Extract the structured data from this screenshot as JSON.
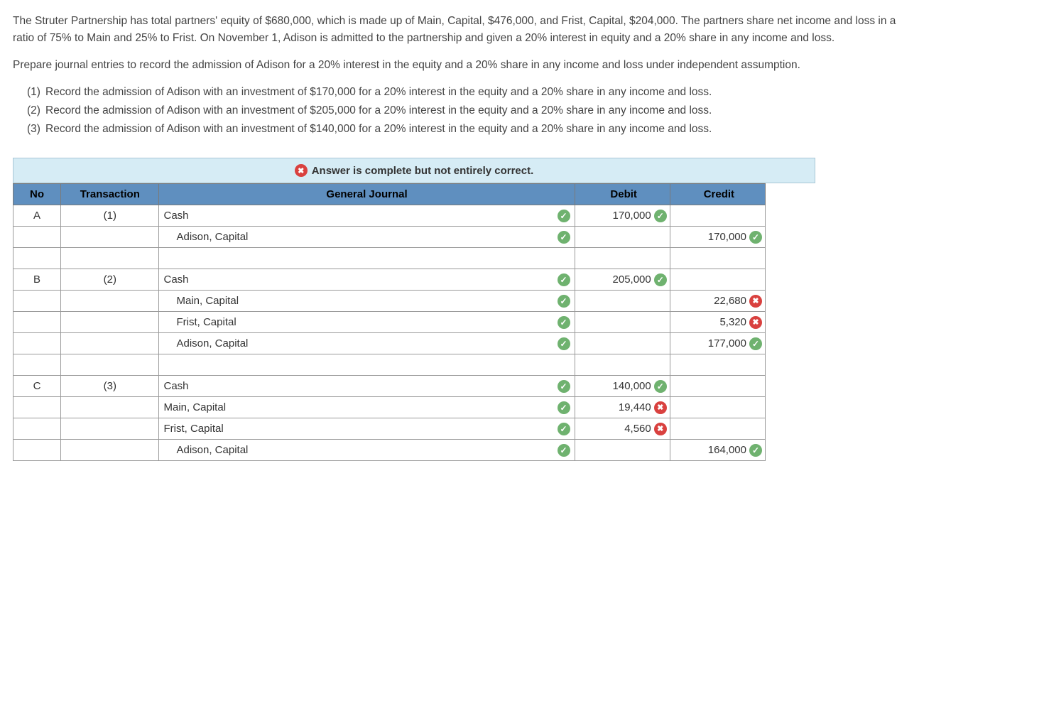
{
  "problem": {
    "para1": "The Struter Partnership has total partners' equity of $680,000, which is made up of Main, Capital, $476,000, and Frist, Capital, $204,000. The partners share net income and loss in a ratio of 75% to Main and 25% to Frist. On November 1, Adison is admitted to the partnership and given a 20% interest in equity and a 20% share in any income and loss.",
    "para2": "Prepare journal entries to record the admission of Adison for a 20% interest in the equity and a 20% share in any income and loss under independent assumption.",
    "items": [
      {
        "num": "(1)",
        "text": "Record the admission of Adison with an investment of $170,000 for a 20% interest in the equity and a 20% share in any income and loss."
      },
      {
        "num": "(2)",
        "text": "Record the admission of Adison with an investment of $205,000 for a 20% interest in the equity and a 20% share in any income and loss."
      },
      {
        "num": "(3)",
        "text": "Record the admission of Adison with an investment of $140,000 for a 20% interest in the equity and a 20% share in any income and loss."
      }
    ]
  },
  "status_message": "Answer is complete but not entirely correct.",
  "table": {
    "headers": {
      "no": "No",
      "transaction": "Transaction",
      "general_journal": "General Journal",
      "debit": "Debit",
      "credit": "Credit"
    },
    "colors": {
      "header_bg": "#5f8fbf",
      "status_bg": "#d6ecf5",
      "correct": "#6fb26f",
      "incorrect": "#d9413f",
      "border": "#9a9a9a"
    },
    "rows": [
      {
        "no": "A",
        "trans": "(1)",
        "account": "Cash",
        "indent": 0,
        "acct_mark": "correct",
        "debit": "170,000",
        "debit_mark": "correct",
        "credit": "",
        "credit_mark": ""
      },
      {
        "no": "",
        "trans": "",
        "account": "Adison, Capital",
        "indent": 1,
        "acct_mark": "correct",
        "debit": "",
        "debit_mark": "",
        "credit": "170,000",
        "credit_mark": "correct"
      },
      {
        "spacer": true
      },
      {
        "no": "B",
        "trans": "(2)",
        "account": "Cash",
        "indent": 0,
        "acct_mark": "correct",
        "debit": "205,000",
        "debit_mark": "correct",
        "credit": "",
        "credit_mark": ""
      },
      {
        "no": "",
        "trans": "",
        "account": "Main, Capital",
        "indent": 1,
        "acct_mark": "correct",
        "debit": "",
        "debit_mark": "",
        "credit": "22,680",
        "credit_mark": "incorrect"
      },
      {
        "no": "",
        "trans": "",
        "account": "Frist, Capital",
        "indent": 1,
        "acct_mark": "correct",
        "debit": "",
        "debit_mark": "",
        "credit": "5,320",
        "credit_mark": "incorrect"
      },
      {
        "no": "",
        "trans": "",
        "account": "Adison, Capital",
        "indent": 1,
        "acct_mark": "correct",
        "debit": "",
        "debit_mark": "",
        "credit": "177,000",
        "credit_mark": "correct"
      },
      {
        "spacer": true
      },
      {
        "no": "C",
        "trans": "(3)",
        "account": "Cash",
        "indent": 0,
        "acct_mark": "correct",
        "debit": "140,000",
        "debit_mark": "correct",
        "credit": "",
        "credit_mark": ""
      },
      {
        "no": "",
        "trans": "",
        "account": "Main, Capital",
        "indent": 0,
        "acct_mark": "correct",
        "debit": "19,440",
        "debit_mark": "incorrect",
        "credit": "",
        "credit_mark": ""
      },
      {
        "no": "",
        "trans": "",
        "account": "Frist, Capital",
        "indent": 0,
        "acct_mark": "correct",
        "debit": "4,560",
        "debit_mark": "incorrect",
        "credit": "",
        "credit_mark": ""
      },
      {
        "no": "",
        "trans": "",
        "account": "Adison, Capital",
        "indent": 1,
        "acct_mark": "correct",
        "debit": "",
        "debit_mark": "",
        "credit": "164,000",
        "credit_mark": "correct"
      }
    ]
  }
}
